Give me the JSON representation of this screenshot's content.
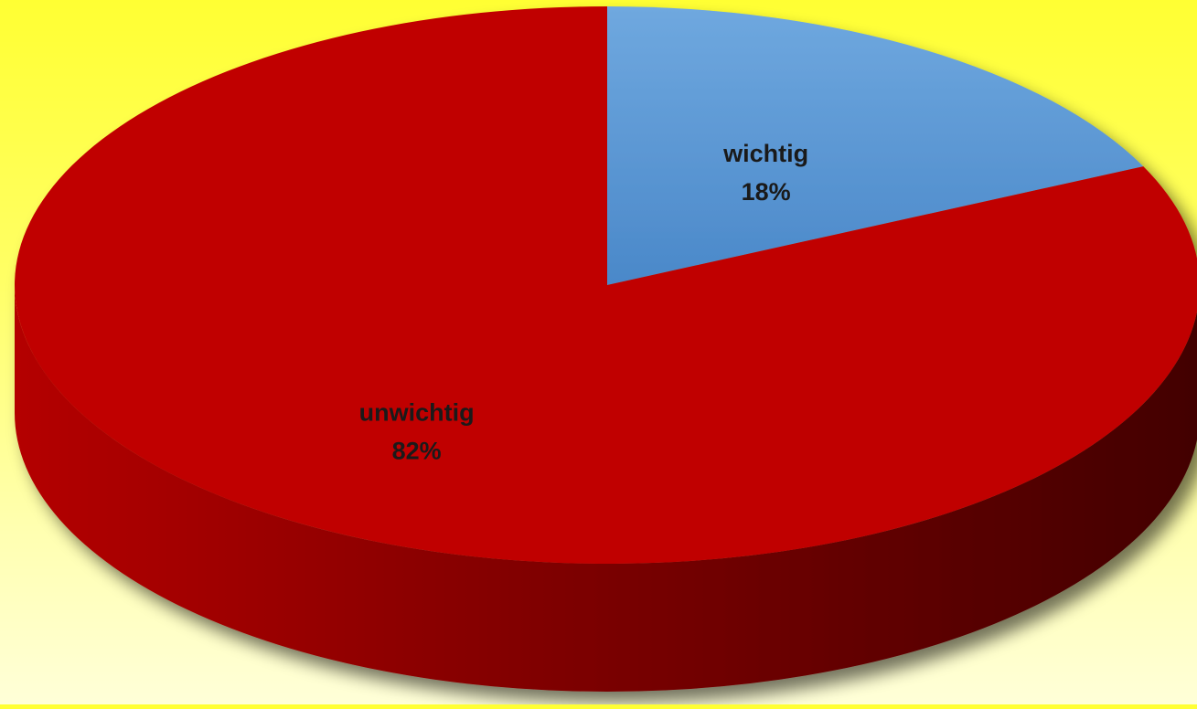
{
  "chart_data": {
    "type": "pie",
    "style": "3d",
    "categories": [
      "wichtig",
      "unwichtig"
    ],
    "values": [
      18,
      82
    ],
    "unit": "%",
    "data_labels": [
      {
        "category": "wichtig",
        "value_text": "18%"
      },
      {
        "category": "unwichtig",
        "value_text": "82%"
      }
    ],
    "colors": {
      "wichtig": "#5b9bd5",
      "unwichtig": "#c00000",
      "background_top": "#ffff33",
      "background_bottom": "#ffffd8"
    },
    "legend": "none",
    "grid": false
  }
}
